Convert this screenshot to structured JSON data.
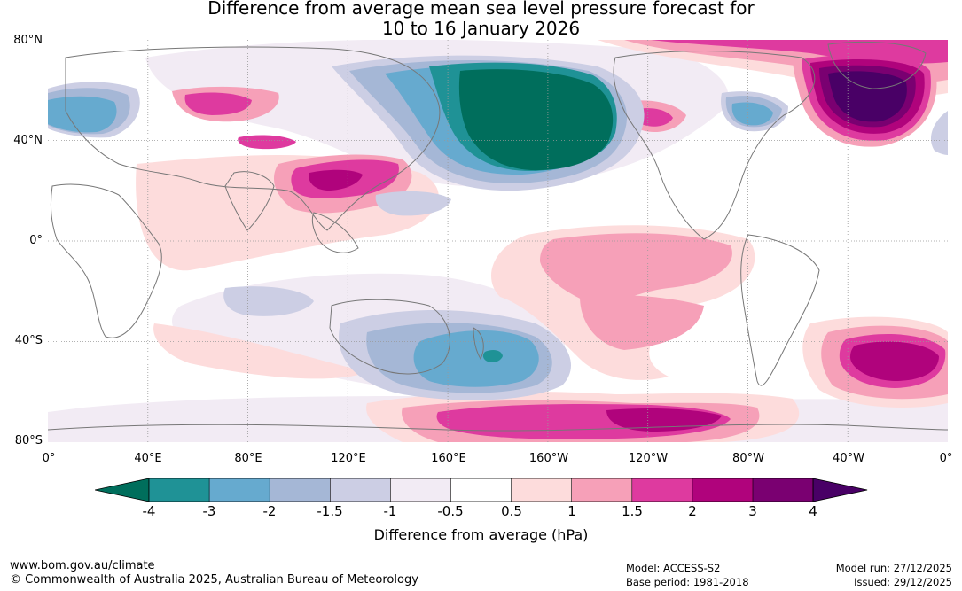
{
  "title": {
    "line1": "Difference from average mean sea level pressure forecast for",
    "line2": "10 to 16 January 2026"
  },
  "axes": {
    "lat_labels": [
      "80°N",
      "40°N",
      "0°",
      "40°S",
      "80°S"
    ],
    "lon_labels": [
      "0°",
      "40°E",
      "80°E",
      "120°E",
      "160°E",
      "160°W",
      "120°W",
      "80°W",
      "40°W",
      "0°"
    ]
  },
  "colorbar": {
    "ticks": [
      "-4",
      "-3",
      "-2",
      "-1.5",
      "-1",
      "-0.5",
      "0.5",
      "1",
      "1.5",
      "2",
      "3",
      "4"
    ],
    "colors": [
      "#006e5c",
      "#1f9296",
      "#66aacf",
      "#a5b7d6",
      "#cccee4",
      "#f2ebf4",
      "#ffffff",
      "#fddcdc",
      "#f6a0b8",
      "#de3a9f",
      "#b0037c",
      "#7a0071",
      "#490066"
    ],
    "label": "Difference from average (hPa)"
  },
  "footer": {
    "url": "www.bom.gov.au/climate",
    "copyright": "© Commonwealth of Australia 2025, Australian Bureau of Meteorology",
    "model": "Model: ACCESS-S2",
    "base_period": "Base period: 1981-2018",
    "model_run": "Model run: 27/12/2025",
    "issued": "Issued: 29/12/2025"
  }
}
